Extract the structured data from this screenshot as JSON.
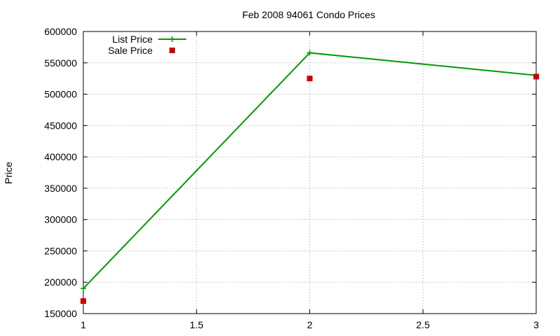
{
  "chart_data": {
    "type": "line",
    "title": "Feb 2008 94061 Condo Prices",
    "xlabel": "",
    "ylabel": "Price",
    "xlim": [
      1,
      3
    ],
    "ylim": [
      150000,
      600000
    ],
    "x_ticks": [
      "1",
      "1.5",
      "2",
      "2.5",
      "3"
    ],
    "y_ticks": [
      "150000",
      "200000",
      "250000",
      "300000",
      "350000",
      "400000",
      "450000",
      "500000",
      "550000",
      "600000"
    ],
    "grid": true,
    "legend_position": "top-left",
    "series": [
      {
        "name": "List Price",
        "style": "line+cross",
        "color": "#009900",
        "points": [
          {
            "x": 1,
            "y": 190000
          },
          {
            "x": 2,
            "y": 566000
          },
          {
            "x": 3,
            "y": 530000
          }
        ]
      },
      {
        "name": "Sale Price",
        "style": "square-markers",
        "color": "#cc0000",
        "points": [
          {
            "x": 1,
            "y": 170000
          },
          {
            "x": 2,
            "y": 525000
          },
          {
            "x": 3,
            "y": 528000
          }
        ]
      }
    ]
  }
}
